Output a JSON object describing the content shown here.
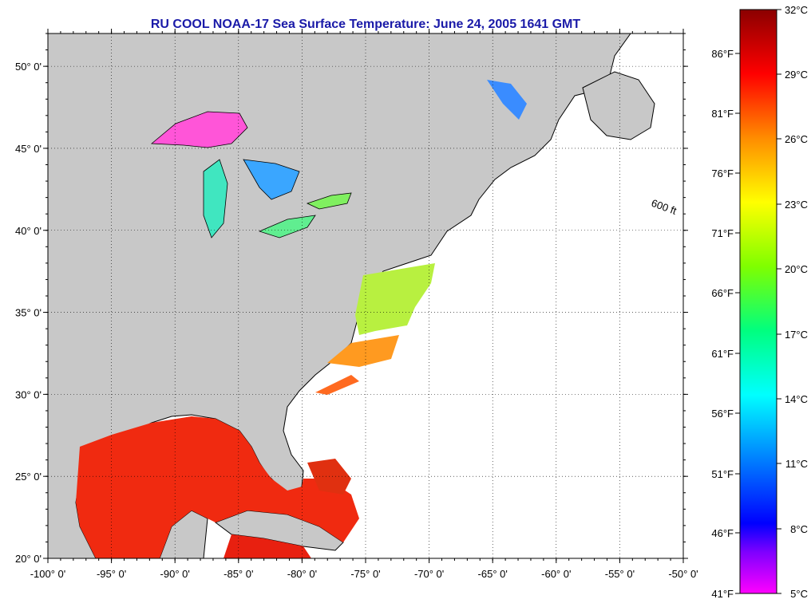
{
  "title": "RU COOL  NOAA-17  Sea Surface Temperature:  June 24, 2005 1641 GMT",
  "map": {
    "lon_range": [
      -100,
      -50
    ],
    "lat_range": [
      20,
      52
    ],
    "x_ticks": [
      "-100° 0'",
      "-95° 0'",
      "-90° 0'",
      "-85° 0'",
      "-80° 0'",
      "-75° 0'",
      "-70° 0'",
      "-65° 0'",
      "-60° 0'",
      "-55° 0'",
      "-50° 0'"
    ],
    "y_ticks": [
      "20° 0'",
      "25° 0'",
      "30° 0'",
      "35° 0'",
      "40° 0'",
      "45° 0'",
      "50° 0'"
    ],
    "x_tick_values": [
      -100,
      -95,
      -90,
      -85,
      -80,
      -75,
      -70,
      -65,
      -60,
      -55,
      -50
    ],
    "y_tick_values": [
      20,
      25,
      30,
      35,
      40,
      45,
      50
    ],
    "grid": true,
    "land_color": "#c8c8c8",
    "ocean_color": "#ffffff",
    "isobath_label": "600 ft"
  },
  "colorbar": {
    "celsius_labels": [
      "32°C",
      "29°C",
      "26°C",
      "23°C",
      "20°C",
      "17°C",
      "14°C",
      "11°C",
      "8°C",
      "5°C"
    ],
    "fahrenheit_labels": [
      "86°F",
      "81°F",
      "76°F",
      "71°F",
      "66°F",
      "61°F",
      "56°F",
      "51°F",
      "46°F",
      "41°F"
    ],
    "colors_top_to_bottom": [
      "#8b0000",
      "#ff0000",
      "#ff8c00",
      "#ffff00",
      "#7fff00",
      "#00ff7f",
      "#00ffff",
      "#0080ff",
      "#0000ff",
      "#8000ff",
      "#ff00ff"
    ]
  }
}
